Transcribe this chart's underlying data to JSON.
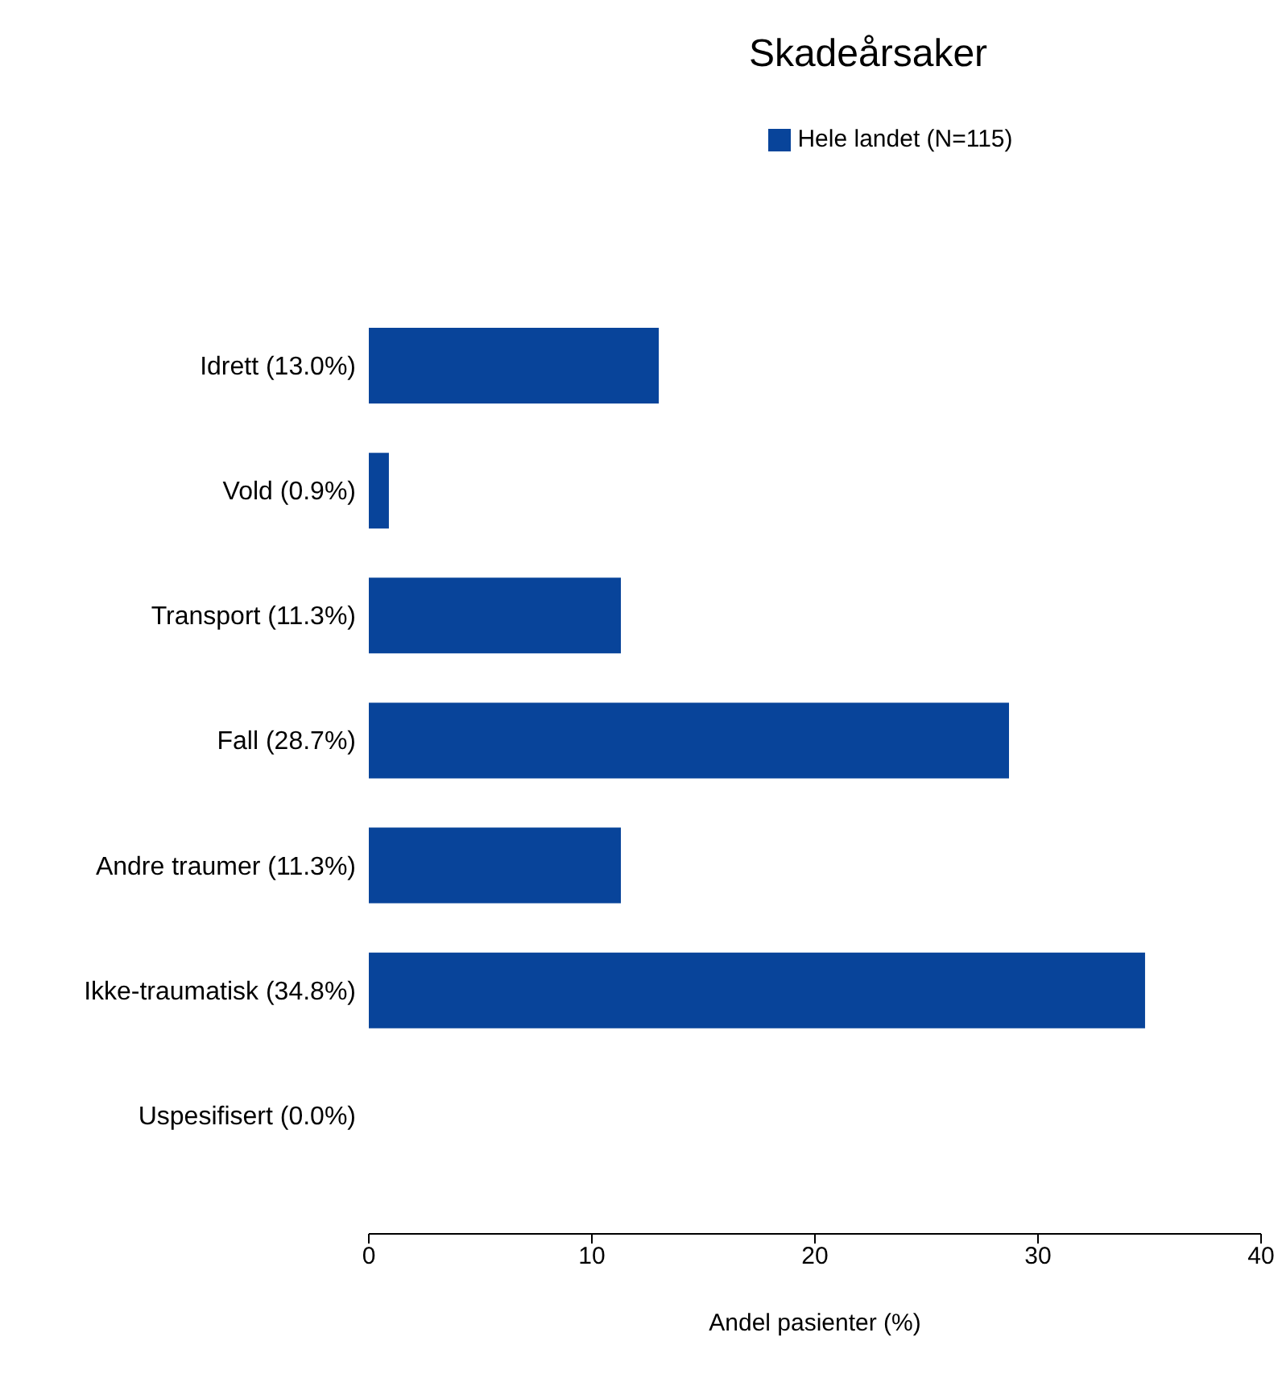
{
  "chart_data": {
    "type": "bar",
    "orientation": "horizontal",
    "title": "Skadeårsaker",
    "xlabel": "Andel pasienter (%)",
    "categories": [
      "Idrett (13.0%)",
      "Vold (0.9%)",
      "Transport (11.3%)",
      "Fall (28.7%)",
      "Andre traumer (11.3%)",
      "Ikke-traumatisk (34.8%)",
      "Uspesifisert (0.0%)"
    ],
    "series": [
      {
        "name": "Hele landet (N=115)",
        "color": "#08449a",
        "values": [
          13.0,
          0.9,
          11.3,
          28.7,
          11.3,
          34.8,
          0.0
        ]
      }
    ],
    "xlim": [
      0,
      40
    ],
    "xticks": [
      0,
      10,
      20,
      30,
      40
    ],
    "grid": false,
    "legend": "top"
  }
}
